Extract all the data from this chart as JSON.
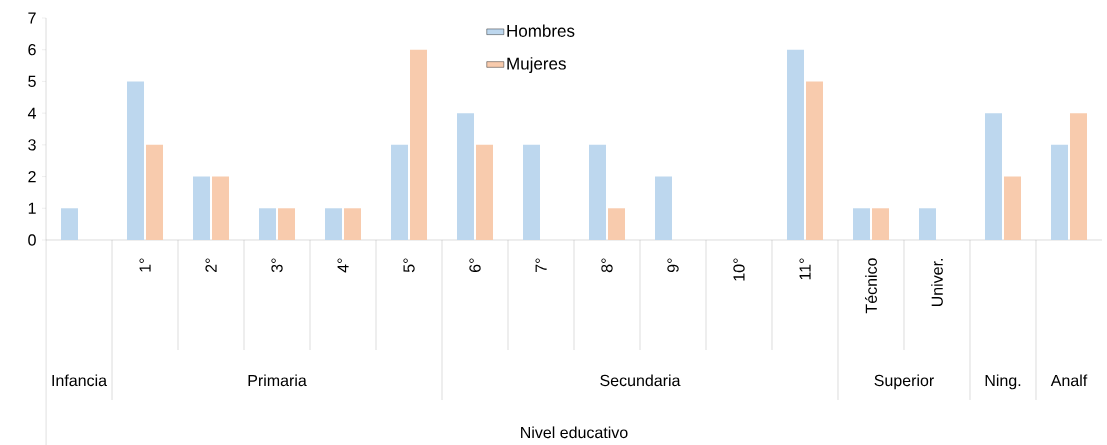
{
  "chart_data": {
    "type": "bar",
    "categories": [
      null,
      "1°",
      "2°",
      "3°",
      "4°",
      "5°",
      "6°",
      "7°",
      "8°",
      "9°",
      "10°",
      "11°",
      "Técnico",
      "Univer.",
      null,
      null
    ],
    "annotations": [
      "Infancia",
      "Primaria",
      "Secundaria",
      "Superior",
      "Ning.",
      "Analf",
      "Nivel educativo"
    ],
    "series": [
      {
        "name": "Hombres",
        "color": "#bdd7ee",
        "values": [
          1,
          5,
          2,
          1,
          1,
          3,
          4,
          3,
          3,
          2,
          0,
          6,
          1,
          1,
          4,
          3
        ]
      },
      {
        "name": "Mujeres",
        "color": "#f8cbad",
        "values": [
          0,
          3,
          2,
          1,
          1,
          6,
          3,
          0,
          1,
          0,
          0,
          5,
          1,
          0,
          2,
          4
        ]
      }
    ],
    "ylim": [
      0,
      7
    ],
    "yticks": [
      0,
      1,
      2,
      3,
      4,
      5,
      6,
      7
    ],
    "grid": false,
    "legend": "top"
  }
}
